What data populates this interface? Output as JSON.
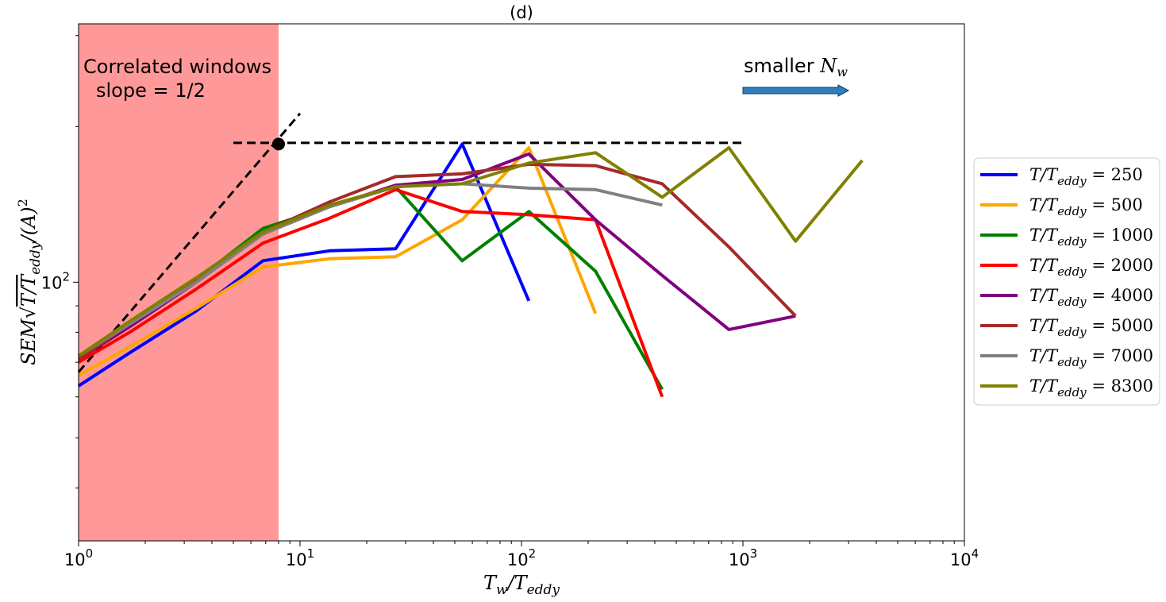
{
  "chart_data": {
    "type": "line",
    "title": "(d)",
    "xlabel": "T_w/T_eddy",
    "ylabel": "SEM√(T/T_eddy)/(A)^2",
    "xscale": "log",
    "yscale": "log",
    "xlim": [
      1,
      10000
    ],
    "ylim": [
      31.6,
      316
    ],
    "x_tick_labels": [
      {
        "value": 1,
        "base": "10",
        "exp": "0"
      },
      {
        "value": 10,
        "base": "10",
        "exp": "1"
      },
      {
        "value": 100,
        "base": "10",
        "exp": "2"
      },
      {
        "value": 1000,
        "base": "10",
        "exp": "3"
      },
      {
        "value": 10000,
        "base": "10",
        "exp": "4"
      }
    ],
    "y_tick_labels": [
      {
        "value": 100,
        "base": "10",
        "exp": "2"
      }
    ],
    "y_minor_ticks": [
      40,
      50,
      60,
      70,
      80,
      90,
      200,
      300
    ],
    "shaded_region": {
      "label": "Correlated windows",
      "x_range": [
        1,
        8
      ],
      "color": "#ff9999"
    },
    "annotations": {
      "correlated": "Correlated windows",
      "slope": "slope  = 1/2",
      "arrow_text": "smaller ",
      "arrow_symbol": "N",
      "arrow_symbol_sub": "w",
      "arrow_color": "#2f7fbf"
    },
    "reference_lines": {
      "slope_line": {
        "x": [
          1,
          10
        ],
        "y": [
          67,
          212
        ]
      },
      "horizontal_line": {
        "x": [
          5,
          1000
        ],
        "y": 186
      },
      "marker_point": {
        "x": 8,
        "y": 185
      }
    },
    "legend_prefix": "T/T",
    "legend_sub": "eddy",
    "series": [
      {
        "name": "250",
        "color": "#0000ff",
        "x": [
          1,
          1.7,
          3.4,
          6.8,
          13.6,
          27,
          54,
          108
        ],
        "y": [
          63,
          73,
          88,
          110,
          115,
          116,
          185,
          92
        ]
      },
      {
        "name": "500",
        "color": "#ffa500",
        "x": [
          1,
          1.7,
          3.4,
          6.8,
          13.6,
          27,
          54,
          108,
          216
        ],
        "y": [
          66,
          75,
          89,
          107,
          111,
          112,
          132,
          182,
          87
        ]
      },
      {
        "name": "1000",
        "color": "#008000",
        "x": [
          1,
          1.7,
          3.4,
          6.8,
          13.6,
          27,
          54,
          108,
          216,
          432
        ],
        "y": [
          72,
          83,
          101,
          127,
          140,
          153,
          110,
          137,
          105,
          62
        ]
      },
      {
        "name": "2000",
        "color": "#ff0000",
        "x": [
          1,
          1.7,
          3.4,
          6.8,
          13.6,
          27,
          54,
          108,
          216,
          432
        ],
        "y": [
          70,
          80,
          97,
          119,
          133,
          151,
          137,
          135,
          132,
          60
        ]
      },
      {
        "name": "4000",
        "color": "#800080",
        "x": [
          1,
          1.7,
          3.4,
          6.8,
          13.6,
          27,
          54,
          108,
          216,
          432,
          864,
          1728
        ],
        "y": [
          71,
          82,
          100,
          124,
          140,
          154,
          158,
          177,
          132,
          103,
          81,
          86
        ]
      },
      {
        "name": "5000",
        "color": "#a52a2a",
        "x": [
          1,
          1.7,
          3.4,
          6.8,
          13.6,
          27,
          54,
          108,
          216,
          432,
          864,
          1728
        ],
        "y": [
          71,
          83,
          101,
          125,
          143,
          160,
          162,
          169,
          168,
          155,
          117,
          86
        ]
      },
      {
        "name": "7000",
        "color": "#808080",
        "x": [
          1,
          1.7,
          3.4,
          6.8,
          13.6,
          27,
          54,
          108,
          216,
          432
        ],
        "y": [
          72,
          83,
          100,
          124,
          140,
          153,
          155,
          152,
          151,
          141
        ]
      },
      {
        "name": "8300",
        "color": "#808000",
        "x": [
          1,
          1.7,
          3.4,
          6.8,
          13.6,
          27,
          54,
          108,
          216,
          432,
          864,
          1728,
          3456
        ],
        "y": [
          72,
          84,
          102,
          125,
          141,
          153,
          155,
          170,
          178,
          146,
          182,
          120,
          172
        ]
      }
    ]
  }
}
